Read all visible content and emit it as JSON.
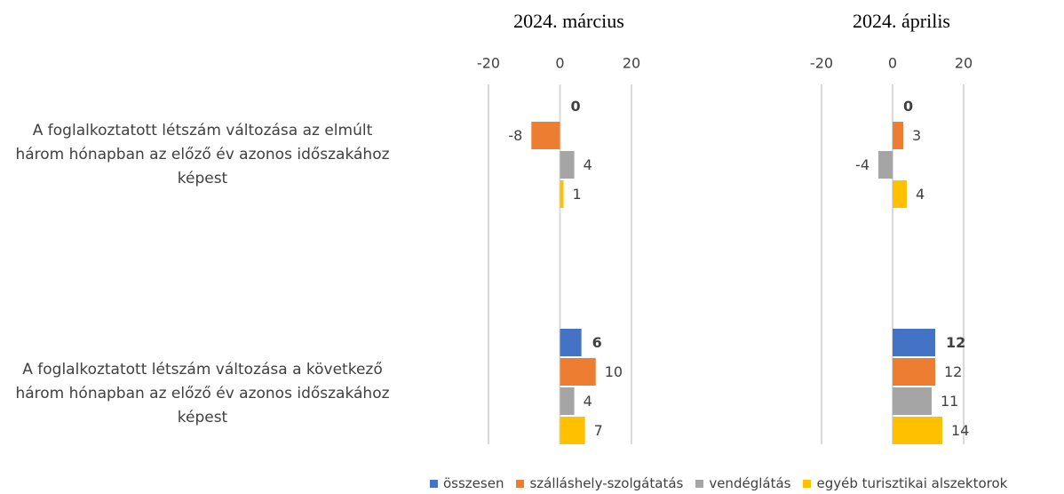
{
  "chart_data": {
    "type": "bar",
    "orientation": "horizontal",
    "categories": [
      "A foglalkoztatott létszám változása az elmúlt három hónapban az előző év azonos időszakához képest",
      "A foglalkoztatott létszám változása a következő három hónapban az előző év azonos időszakához képest"
    ],
    "series": [
      {
        "name": "összesen",
        "color": "#4472c4"
      },
      {
        "name": "szálláshely-szolgátatás",
        "color": "#ed7d31"
      },
      {
        "name": "vendéglátás",
        "color": "#a5a5a5"
      },
      {
        "name": "egyéb turisztikai alszektorok",
        "color": "#ffc000"
      }
    ],
    "grid": true,
    "panels": [
      {
        "title": "2024. március",
        "xlim": [
          -20,
          20
        ],
        "xticks": [
          -20,
          0,
          20
        ],
        "series": [
          {
            "values": [
              0,
              6
            ]
          },
          {
            "values": [
              -8,
              10
            ]
          },
          {
            "values": [
              4,
              4
            ]
          },
          {
            "values": [
              1,
              7
            ]
          }
        ]
      },
      {
        "title": "2024. április",
        "xlim": [
          -20,
          20
        ],
        "xticks": [
          -20,
          0,
          20
        ],
        "series": [
          {
            "values": [
              0,
              12
            ]
          },
          {
            "values": [
              3,
              12
            ]
          },
          {
            "values": [
              -4,
              11
            ]
          },
          {
            "values": [
              4,
              14
            ]
          }
        ]
      }
    ]
  }
}
